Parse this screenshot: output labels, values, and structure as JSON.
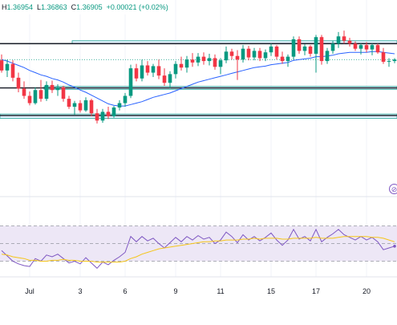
{
  "ohlc": {
    "high_key": "H",
    "high": "1.36954",
    "low_key": "L",
    "low": "1.36863",
    "close_key": "C",
    "close": "1.36905",
    "change": "+0.00021 (+0.02%)"
  },
  "colors": {
    "up": "#089981",
    "down": "#f23645",
    "ma": "#2962ff",
    "rsi": "#7e57c2",
    "rsi_ma": "#f5c518",
    "rsi_band": "#ede7f6",
    "zone_fill": "#e3f2fd",
    "zone_border": "#26a69a"
  },
  "icons": {
    "alert": "alert-circle-icon"
  },
  "chart_data": [
    {
      "type": "candlestick",
      "x_tick_labels": [
        "Jul",
        "3",
        "6",
        "9",
        "11",
        "15",
        "17",
        "20"
      ],
      "y_range": [
        1.352,
        1.375
      ],
      "horizontal_levels": [
        1.3712,
        1.3651,
        1.3613
      ],
      "zones": [
        {
          "from": 1.3712,
          "to": 1.3716,
          "x_start": 90
        },
        {
          "from": 1.3649,
          "to": 1.3653,
          "x_start": 55
        },
        {
          "from": 1.3609,
          "to": 1.3615,
          "x_start": 0
        }
      ],
      "candles": [
        [
          1.3689,
          1.3697,
          1.3672,
          1.3675
        ],
        [
          1.3675,
          1.369,
          1.3666,
          1.3684
        ],
        [
          1.3684,
          1.3689,
          1.366,
          1.3665
        ],
        [
          1.3665,
          1.3672,
          1.3645,
          1.365
        ],
        [
          1.365,
          1.366,
          1.3636,
          1.364
        ],
        [
          1.364,
          1.3646,
          1.3627,
          1.363
        ],
        [
          1.363,
          1.3652,
          1.3628,
          1.3648
        ],
        [
          1.3648,
          1.3662,
          1.3632,
          1.3636
        ],
        [
          1.3636,
          1.366,
          1.3633,
          1.3655
        ],
        [
          1.3655,
          1.3661,
          1.3644,
          1.3648
        ],
        [
          1.3648,
          1.3656,
          1.364,
          1.3652
        ],
        [
          1.3652,
          1.3654,
          1.3632,
          1.3636
        ],
        [
          1.3636,
          1.364,
          1.3622,
          1.3625
        ],
        [
          1.3625,
          1.3633,
          1.3614,
          1.363
        ],
        [
          1.363,
          1.3634,
          1.3617,
          1.362
        ],
        [
          1.362,
          1.3638,
          1.3618,
          1.3634
        ],
        [
          1.3634,
          1.3636,
          1.3612,
          1.3616
        ],
        [
          1.3616,
          1.3622,
          1.3602,
          1.3606
        ],
        [
          1.3606,
          1.3622,
          1.3603,
          1.3618
        ],
        [
          1.3618,
          1.3625,
          1.3608,
          1.3612
        ],
        [
          1.3612,
          1.3626,
          1.361,
          1.3624
        ],
        [
          1.3624,
          1.3634,
          1.362,
          1.363
        ],
        [
          1.363,
          1.3644,
          1.3625,
          1.364
        ],
        [
          1.364,
          1.3683,
          1.3637,
          1.3678
        ],
        [
          1.3678,
          1.3684,
          1.366,
          1.3664
        ],
        [
          1.3664,
          1.369,
          1.366,
          1.3682
        ],
        [
          1.3682,
          1.3688,
          1.3668,
          1.3672
        ],
        [
          1.3672,
          1.3684,
          1.3666,
          1.3681
        ],
        [
          1.3681,
          1.369,
          1.3663,
          1.3668
        ],
        [
          1.3668,
          1.3678,
          1.3654,
          1.3658
        ],
        [
          1.3658,
          1.3674,
          1.365,
          1.367
        ],
        [
          1.367,
          1.3688,
          1.3664,
          1.3684
        ],
        [
          1.3684,
          1.3694,
          1.3675,
          1.3679
        ],
        [
          1.3679,
          1.3695,
          1.3672,
          1.369
        ],
        [
          1.369,
          1.3699,
          1.368,
          1.3686
        ],
        [
          1.3686,
          1.3699,
          1.3681,
          1.3694
        ],
        [
          1.3694,
          1.37,
          1.3683,
          1.3688
        ],
        [
          1.3688,
          1.3698,
          1.3682,
          1.3692
        ],
        [
          1.3692,
          1.3697,
          1.3676,
          1.368
        ],
        [
          1.368,
          1.3692,
          1.367,
          1.3689
        ],
        [
          1.3689,
          1.3708,
          1.3685,
          1.3701
        ],
        [
          1.3701,
          1.3705,
          1.369,
          1.3695
        ],
        [
          1.3695,
          1.3703,
          1.3662,
          1.369
        ],
        [
          1.369,
          1.371,
          1.3686,
          1.3705
        ],
        [
          1.3705,
          1.3709,
          1.3689,
          1.3693
        ],
        [
          1.3693,
          1.3706,
          1.3689,
          1.3702
        ],
        [
          1.3702,
          1.3706,
          1.3688,
          1.3692
        ],
        [
          1.3692,
          1.3704,
          1.3688,
          1.37
        ],
        [
          1.37,
          1.3712,
          1.3695,
          1.3708
        ],
        [
          1.3708,
          1.371,
          1.369,
          1.3694
        ],
        [
          1.3694,
          1.3701,
          1.3684,
          1.3688
        ],
        [
          1.3688,
          1.3697,
          1.368,
          1.3694
        ],
        [
          1.3694,
          1.3722,
          1.369,
          1.3718
        ],
        [
          1.3718,
          1.3722,
          1.3698,
          1.3702
        ],
        [
          1.3702,
          1.3711,
          1.3696,
          1.3708
        ],
        [
          1.3708,
          1.371,
          1.3694,
          1.3698
        ],
        [
          1.3698,
          1.3724,
          1.3672,
          1.3721
        ],
        [
          1.3721,
          1.3724,
          1.3683,
          1.3688
        ],
        [
          1.3688,
          1.3706,
          1.3684,
          1.3702
        ],
        [
          1.3702,
          1.3716,
          1.3698,
          1.3712
        ],
        [
          1.3712,
          1.3728,
          1.3706,
          1.3722
        ],
        [
          1.3722,
          1.373,
          1.3712,
          1.3716
        ],
        [
          1.3716,
          1.372,
          1.3708,
          1.3712
        ],
        [
          1.3712,
          1.3715,
          1.3702,
          1.3705
        ],
        [
          1.3705,
          1.3712,
          1.3697,
          1.371
        ],
        [
          1.371,
          1.3714,
          1.37,
          1.3704
        ],
        [
          1.3704,
          1.3712,
          1.3696,
          1.371
        ],
        [
          1.371,
          1.3712,
          1.3698,
          1.37
        ],
        [
          1.37,
          1.3706,
          1.3684,
          1.3687
        ],
        [
          1.3687,
          1.3692,
          1.368,
          1.3688
        ],
        [
          1.3688,
          1.3692,
          1.3685,
          1.369
        ]
      ],
      "ma": [
        1.369,
        1.3688,
        1.3685,
        1.3682,
        1.3679,
        1.3675,
        1.3672,
        1.3669,
        1.3667,
        1.3664,
        1.3662,
        1.3659,
        1.3655,
        1.3652,
        1.3648,
        1.3645,
        1.3641,
        1.3637,
        1.3633,
        1.3629,
        1.3627,
        1.3626,
        1.3626,
        1.3628,
        1.363,
        1.3632,
        1.3635,
        1.3638,
        1.364,
        1.3642,
        1.3644,
        1.3647,
        1.365,
        1.3653,
        1.3656,
        1.3659,
        1.3661,
        1.3663,
        1.3665,
        1.3667,
        1.3669,
        1.3671,
        1.3673,
        1.3675,
        1.3677,
        1.3679,
        1.368,
        1.3681,
        1.3683,
        1.3684,
        1.3685,
        1.3686,
        1.3689,
        1.369,
        1.3691,
        1.3692,
        1.3694,
        1.3694,
        1.3695,
        1.3696,
        1.3698,
        1.3699,
        1.37,
        1.37,
        1.37,
        1.37,
        1.3701,
        1.3701,
        1.37,
        1.3699,
        1.3698
      ]
    },
    {
      "type": "line",
      "y_range": [
        15,
        85
      ],
      "levels": [
        70,
        50,
        30
      ],
      "series": [
        {
          "values": [
            42,
            36,
            30,
            27,
            25,
            24,
            33,
            30,
            37,
            35,
            38,
            33,
            28,
            30,
            27,
            34,
            28,
            22,
            29,
            26,
            31,
            35,
            40,
            58,
            52,
            58,
            53,
            56,
            50,
            45,
            51,
            57,
            52,
            58,
            54,
            59,
            55,
            57,
            50,
            54,
            63,
            58,
            51,
            60,
            54,
            58,
            53,
            57,
            62,
            54,
            48,
            54,
            66,
            55,
            58,
            53,
            66,
            52,
            57,
            61,
            66,
            60,
            57,
            54,
            58,
            54,
            57,
            52,
            43,
            45,
            47
          ]
        },
        {
          "values": [
            38,
            37,
            35,
            34,
            33,
            31,
            31,
            30,
            30,
            31,
            31,
            32,
            31,
            31,
            30,
            30,
            30,
            29,
            29,
            29,
            29,
            29,
            30,
            33,
            35,
            38,
            40,
            42,
            44,
            45,
            46,
            47,
            48,
            49,
            50,
            51,
            52,
            52,
            53,
            53,
            54,
            54,
            54,
            55,
            55,
            56,
            55,
            56,
            56,
            56,
            55,
            55,
            56,
            56,
            56,
            56,
            57,
            56,
            56,
            56,
            57,
            58,
            58,
            58,
            58,
            58,
            57,
            57,
            56,
            54,
            52
          ]
        }
      ]
    }
  ]
}
